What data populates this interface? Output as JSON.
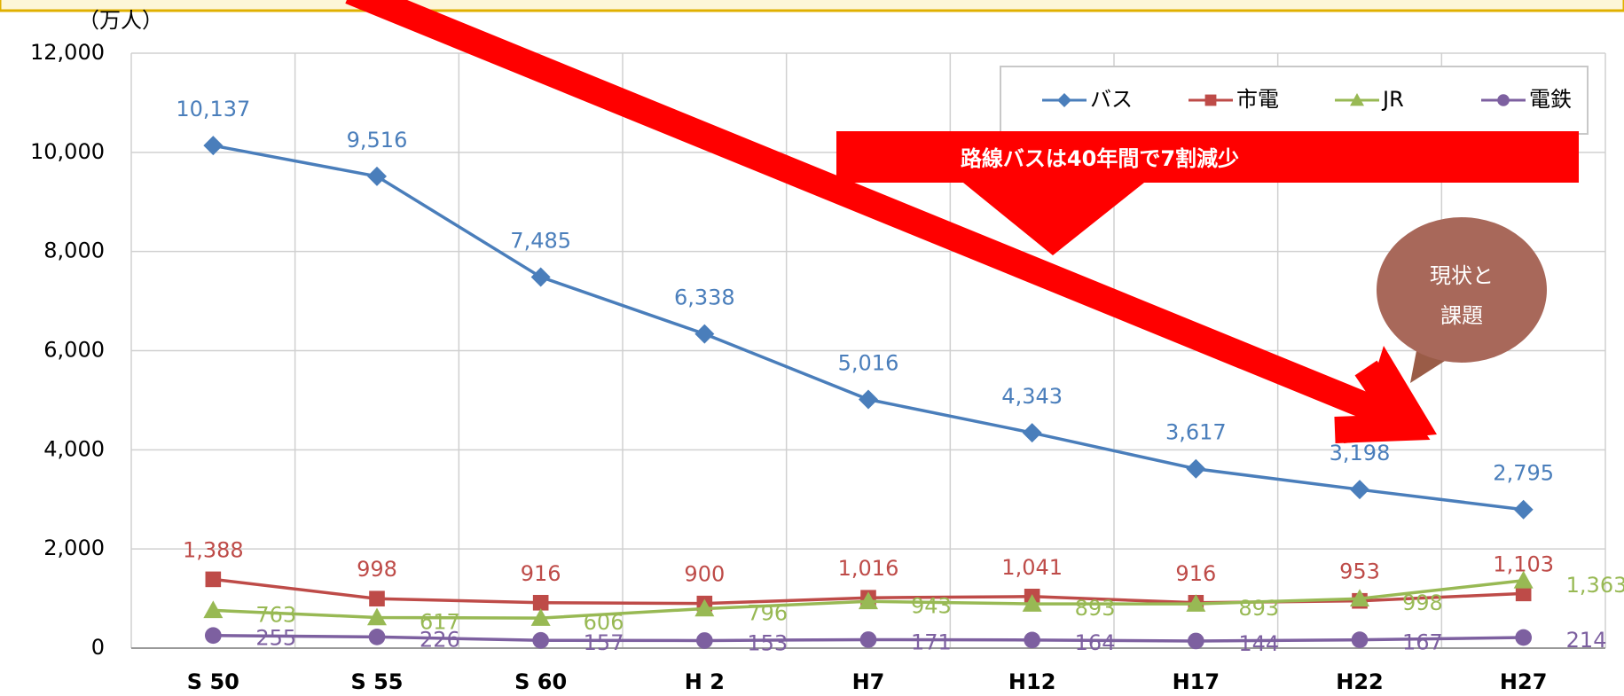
{
  "chart_data": {
    "type": "line",
    "y_axis_label": "（万人）",
    "categories": [
      "S 50",
      "S 55",
      "S 60",
      "H 2",
      "H7",
      "H12",
      "H17",
      "H22",
      "H27"
    ],
    "series": [
      {
        "name": "バス",
        "color": "#4a7ebb",
        "marker": "diamond",
        "values": [
          10137,
          9516,
          7485,
          6338,
          5016,
          4343,
          3617,
          3198,
          2795
        ],
        "value_labels": [
          "10,137",
          "9,516",
          "7,485",
          "6,338",
          "5,016",
          "4,343",
          "3,617",
          "3,198",
          "2,795"
        ]
      },
      {
        "name": "市電",
        "color": "#be4b48",
        "marker": "square",
        "values": [
          1388,
          998,
          916,
          900,
          1016,
          1041,
          916,
          953,
          1103
        ],
        "value_labels": [
          "1,388",
          "998",
          "916",
          "900",
          "1,016",
          "1,041",
          "916",
          "953",
          "1,103"
        ]
      },
      {
        "name": "JR",
        "color": "#98b954",
        "marker": "triangle",
        "values": [
          763,
          617,
          606,
          796,
          943,
          893,
          893,
          998,
          1363
        ],
        "value_labels": [
          "763",
          "617",
          "606",
          "796",
          "943",
          "893",
          "893",
          "998",
          "1,363"
        ]
      },
      {
        "name": "電鉄",
        "color": "#7d60a0",
        "marker": "circle",
        "values": [
          255,
          226,
          157,
          153,
          171,
          164,
          144,
          167,
          214
        ]
      }
    ],
    "ylim": [
      0,
      12000
    ],
    "yticks": [
      0,
      {
        "value": 2000,
        "label": "2,000"
      },
      {
        "value": 4000,
        "label": "4,000"
      },
      {
        "value": 6000,
        "label": "6,000"
      },
      {
        "value": 8000,
        "label": "8,000"
      },
      {
        "value": 10000,
        "label": "10,000"
      },
      {
        "value": 12000,
        "label": "12,000"
      }
    ],
    "grid": true,
    "legend": "upper right",
    "annotations": [
      "路線バスは40年間で7割減少",
      "現状と",
      "課題"
    ]
  }
}
